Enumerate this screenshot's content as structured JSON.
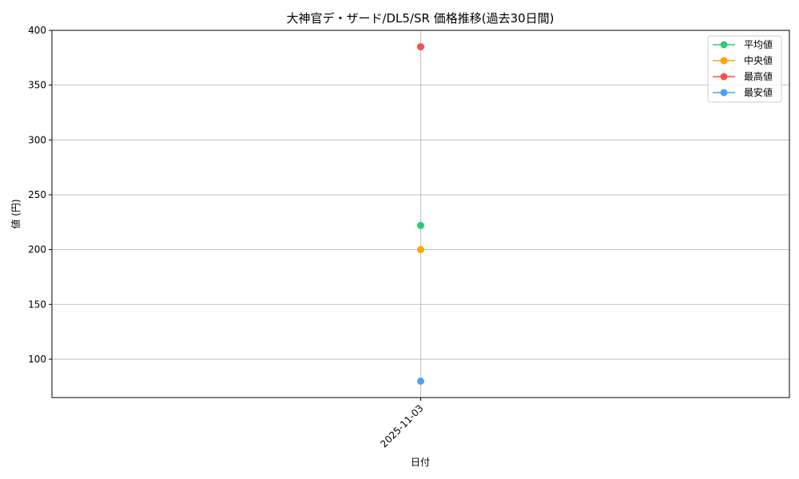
{
  "chart_data": {
    "type": "line",
    "title": "大神官デ・ザード/DL5/SR 価格推移(過去30日間)",
    "xlabel": "日付",
    "ylabel": "値 (円)",
    "categories": [
      "2025-11-03"
    ],
    "ylim": [
      65,
      400
    ],
    "yticks": [
      100,
      150,
      200,
      250,
      300,
      350,
      400
    ],
    "grid": true,
    "legend_position": "top-right",
    "series": [
      {
        "name": "平均値",
        "values": [
          222
        ],
        "color": "#2ecc71"
      },
      {
        "name": "中央値",
        "values": [
          200
        ],
        "color": "#ffa500"
      },
      {
        "name": "最高値",
        "values": [
          385
        ],
        "color": "#ff4d4d"
      },
      {
        "name": "最安値",
        "values": [
          80
        ],
        "color": "#4d9fff"
      }
    ]
  }
}
